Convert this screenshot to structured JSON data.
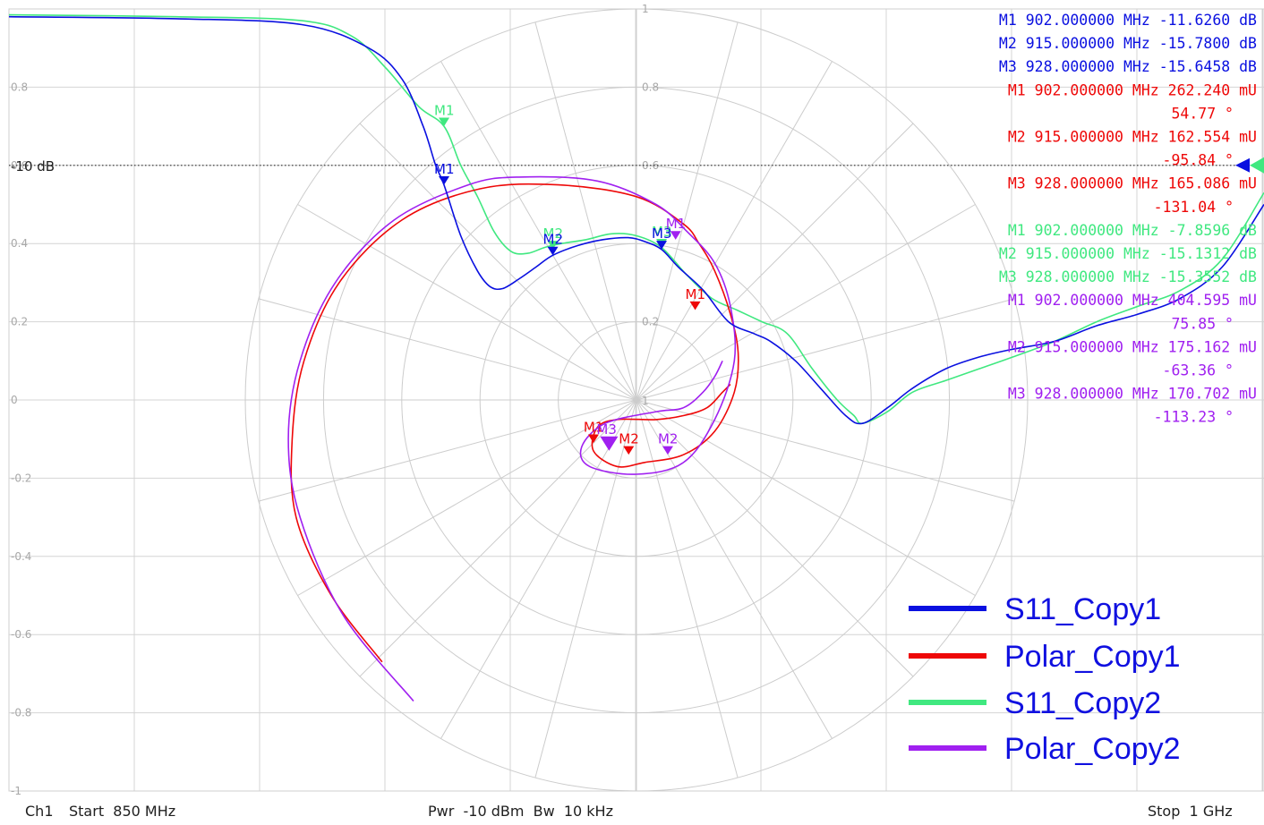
{
  "chart_data": {
    "type": "line",
    "y_axis": {
      "ticks": [
        {
          "value": 0.8,
          "label": "0.8"
        },
        {
          "value": 0.6,
          "label": "0.6"
        },
        {
          "value": 0.4,
          "label": "0.4"
        },
        {
          "value": 0.2,
          "label": "0.2"
        },
        {
          "value": 0,
          "label": "0"
        },
        {
          "value": -0.2,
          "label": "-0.2"
        },
        {
          "value": -0.4,
          "label": "-0.4"
        },
        {
          "value": -0.6,
          "label": "-0.6"
        },
        {
          "value": -0.8,
          "label": "-0.8"
        },
        {
          "value": -1,
          "label": "-1"
        }
      ],
      "range": [
        -1,
        1
      ]
    },
    "x_range_mhz": [
      850,
      1000
    ],
    "grid": true,
    "polar_grid": {
      "radii": [
        0.2,
        0.4,
        0.6,
        0.8,
        1.0
      ],
      "ring_labels": [
        {
          "value": 1,
          "label": "1"
        },
        {
          "value": 0.8,
          "label": "0.8"
        },
        {
          "value": 0.6,
          "label": "0.6"
        },
        {
          "value": 0.2,
          "label": "0.2"
        },
        {
          "value": 0,
          "label": "1"
        }
      ]
    },
    "reference_line": {
      "label": "-10 dB",
      "value": 0.6
    },
    "series": [
      {
        "name": "S11_Copy1",
        "color": "#0a10e0",
        "kind": "cartesian",
        "points": [
          [
            850,
            0.98
          ],
          [
            870,
            0.975
          ],
          [
            885,
            0.96
          ],
          [
            893,
            0.9
          ],
          [
            897,
            0.82
          ],
          [
            899.5,
            0.7
          ],
          [
            901,
            0.6
          ],
          [
            902,
            0.55
          ],
          [
            904,
            0.42
          ],
          [
            906,
            0.33
          ],
          [
            907.5,
            0.29
          ],
          [
            909,
            0.285
          ],
          [
            911,
            0.31
          ],
          [
            913,
            0.34
          ],
          [
            915,
            0.37
          ],
          [
            918,
            0.395
          ],
          [
            921,
            0.41
          ],
          [
            924,
            0.415
          ],
          [
            926,
            0.405
          ],
          [
            928,
            0.385
          ],
          [
            930,
            0.34
          ],
          [
            933,
            0.28
          ],
          [
            936,
            0.2
          ],
          [
            939,
            0.17
          ],
          [
            941,
            0.15
          ],
          [
            944,
            0.1
          ],
          [
            947,
            0.03
          ],
          [
            950,
            -0.04
          ],
          [
            952,
            -0.06
          ],
          [
            955,
            -0.02
          ],
          [
            958,
            0.03
          ],
          [
            962,
            0.08
          ],
          [
            966,
            0.11
          ],
          [
            970,
            0.13
          ],
          [
            975,
            0.15
          ],
          [
            980,
            0.19
          ],
          [
            985,
            0.22
          ],
          [
            990,
            0.26
          ],
          [
            995,
            0.34
          ],
          [
            1000,
            0.5
          ]
        ]
      },
      {
        "name": "S11_Copy2",
        "color": "#40e880",
        "kind": "cartesian",
        "points": [
          [
            850,
            0.985
          ],
          [
            870,
            0.98
          ],
          [
            885,
            0.97
          ],
          [
            891,
            0.93
          ],
          [
            895,
            0.85
          ],
          [
            899,
            0.75
          ],
          [
            902,
            0.7
          ],
          [
            904,
            0.6
          ],
          [
            906,
            0.52
          ],
          [
            908,
            0.43
          ],
          [
            910,
            0.38
          ],
          [
            912,
            0.375
          ],
          [
            914,
            0.39
          ],
          [
            916,
            0.4
          ],
          [
            919,
            0.41
          ],
          [
            922,
            0.425
          ],
          [
            925,
            0.42
          ],
          [
            928,
            0.39
          ],
          [
            931,
            0.32
          ],
          [
            934,
            0.26
          ],
          [
            937,
            0.23
          ],
          [
            940,
            0.2
          ],
          [
            943,
            0.17
          ],
          [
            946,
            0.08
          ],
          [
            949,
            0.0
          ],
          [
            951,
            -0.04
          ],
          [
            952,
            -0.06
          ],
          [
            955,
            -0.03
          ],
          [
            958,
            0.02
          ],
          [
            962,
            0.05
          ],
          [
            966,
            0.08
          ],
          [
            970,
            0.11
          ],
          [
            975,
            0.15
          ],
          [
            980,
            0.2
          ],
          [
            985,
            0.24
          ],
          [
            990,
            0.28
          ],
          [
            995,
            0.36
          ],
          [
            1000,
            0.53
          ]
        ]
      },
      {
        "name": "Polar_Copy1",
        "color": "#ee0808",
        "kind": "polar",
        "points": [
          [
            -0.65,
            -0.67
          ],
          [
            -0.78,
            -0.5
          ],
          [
            -0.87,
            -0.3
          ],
          [
            -0.88,
            -0.1
          ],
          [
            -0.85,
            0.1
          ],
          [
            -0.76,
            0.3
          ],
          [
            -0.6,
            0.46
          ],
          [
            -0.4,
            0.54
          ],
          [
            -0.2,
            0.55
          ],
          [
            0.0,
            0.52
          ],
          [
            0.12,
            0.45
          ],
          [
            0.16,
            0.4
          ],
          [
            0.2,
            0.33
          ],
          [
            0.24,
            0.22
          ],
          [
            0.26,
            0.12
          ],
          [
            0.25,
            0.02
          ],
          [
            0.2,
            -0.08
          ],
          [
            0.12,
            -0.14
          ],
          [
            0.02,
            -0.16
          ],
          [
            -0.05,
            -0.17
          ],
          [
            -0.11,
            -0.13
          ],
          [
            -0.1,
            -0.07
          ],
          [
            -0.05,
            -0.05
          ],
          [
            0.05,
            -0.05
          ],
          [
            0.12,
            -0.04
          ],
          [
            0.18,
            -0.02
          ],
          [
            0.22,
            0.02
          ],
          [
            0.24,
            0.04
          ]
        ]
      },
      {
        "name": "Polar_Copy2",
        "color": "#a020f0",
        "kind": "polar",
        "points": [
          [
            -0.57,
            -0.77
          ],
          [
            -0.75,
            -0.55
          ],
          [
            -0.86,
            -0.3
          ],
          [
            -0.89,
            -0.1
          ],
          [
            -0.86,
            0.1
          ],
          [
            -0.77,
            0.3
          ],
          [
            -0.62,
            0.46
          ],
          [
            -0.43,
            0.55
          ],
          [
            -0.3,
            0.57
          ],
          [
            -0.1,
            0.56
          ],
          [
            0.05,
            0.5
          ],
          [
            0.13,
            0.43
          ],
          [
            0.2,
            0.35
          ],
          [
            0.24,
            0.24
          ],
          [
            0.25,
            0.1
          ],
          [
            0.2,
            -0.05
          ],
          [
            0.12,
            -0.16
          ],
          [
            0.0,
            -0.19
          ],
          [
            -0.12,
            -0.17
          ],
          [
            -0.14,
            -0.12
          ],
          [
            -0.08,
            -0.06
          ],
          [
            0.05,
            -0.03
          ],
          [
            0.12,
            -0.02
          ],
          [
            0.17,
            0.02
          ],
          [
            0.2,
            0.06
          ],
          [
            0.22,
            0.1
          ]
        ]
      }
    ],
    "legend": {
      "placement": "bottom-right",
      "entries": [
        {
          "name": "S11_Copy1",
          "color": "#0a10e0"
        },
        {
          "name": "Polar_Copy1",
          "color": "#ee0808"
        },
        {
          "name": "S11_Copy2",
          "color": "#40e880"
        },
        {
          "name": "Polar_Copy2",
          "color": "#a020f0"
        }
      ]
    },
    "trace_markers": [
      {
        "label": "M1",
        "series": "S11_Copy2",
        "color": "#40e880",
        "kind": "cartesian",
        "x": 902,
        "y": 0.7
      },
      {
        "label": "M1",
        "series": "S11_Copy1",
        "color": "#0a10e0",
        "kind": "cartesian",
        "x": 902,
        "y": 0.55
      },
      {
        "label": "M2",
        "series": "S11_Copy2",
        "color": "#40e880",
        "kind": "cartesian",
        "x": 915,
        "y": 0.385
      },
      {
        "label": "M2",
        "series": "S11_Copy1",
        "color": "#0a10e0",
        "kind": "cartesian",
        "x": 915,
        "y": 0.37
      },
      {
        "label": "M3",
        "series": "S11_Copy2",
        "color": "#40e880",
        "kind": "cartesian",
        "x": 928,
        "y": 0.39
      },
      {
        "label": "M3",
        "series": "S11_Copy1",
        "color": "#0a10e0",
        "kind": "cartesian",
        "x": 928,
        "y": 0.385
      },
      {
        "label": "M1",
        "series": "Polar_Copy2",
        "color": "#a020f0",
        "kind": "polar",
        "re": 0.1,
        "im": 0.41
      },
      {
        "label": "M1",
        "series": "Polar_Copy1",
        "color": "#ee0808",
        "kind": "polar",
        "re": 0.15,
        "im": 0.23
      },
      {
        "label": "M1",
        "series": "Polar_Copy1",
        "color": "#ee0808",
        "kind": "polar",
        "re": -0.11,
        "im": -0.11
      },
      {
        "label": "M2",
        "series": "Polar_Copy1",
        "color": "#ee0808",
        "kind": "polar",
        "re": -0.02,
        "im": -0.14
      },
      {
        "label": "M2",
        "series": "Polar_Copy2",
        "color": "#a020f0",
        "kind": "polar",
        "re": 0.08,
        "im": -0.14
      },
      {
        "label": "M3",
        "series": "Polar_Copy2",
        "color": "#a020f0",
        "kind": "polar",
        "re": -0.07,
        "im": -0.13
      }
    ],
    "marker_readouts": [
      {
        "color": "#0a10e0",
        "line": "M1  902.000000  MHz  -11.6260 dB"
      },
      {
        "color": "#0a10e0",
        "line": "M2  915.000000  MHz  -15.7800 dB"
      },
      {
        "color": "#0a10e0",
        "line": "M3  928.000000  MHz  -15.6458 dB"
      },
      {
        "color": "#ee0808",
        "line": "M1  902.000000  MHz  262.240 mU"
      },
      {
        "color": "#ee0808",
        "line": "54.77 °",
        "indent": true
      },
      {
        "color": "#ee0808",
        "line": "M2  915.000000  MHz  162.554 mU"
      },
      {
        "color": "#ee0808",
        "line": "-95.84 °",
        "indent": true
      },
      {
        "color": "#ee0808",
        "line": "M3  928.000000  MHz  165.086 mU"
      },
      {
        "color": "#ee0808",
        "line": "-131.04 °",
        "indent": true
      },
      {
        "color": "#40e880",
        "line": "M1  902.000000  MHz  -7.8596 dB"
      },
      {
        "color": "#40e880",
        "line": "M2  915.000000  MHz  -15.1312 dB"
      },
      {
        "color": "#40e880",
        "line": "M3  928.000000  MHz  -15.3552 dB"
      },
      {
        "color": "#a020f0",
        "line": "M1  902.000000  MHz  404.595 mU"
      },
      {
        "color": "#a020f0",
        "line": "75.85 °",
        "indent": true
      },
      {
        "color": "#a020f0",
        "line": "M2  915.000000  MHz  175.162 mU"
      },
      {
        "color": "#a020f0",
        "line": "-63.36 °",
        "indent": true
      },
      {
        "color": "#a020f0",
        "line": "M3  928.000000  MHz  170.702 mU"
      },
      {
        "color": "#a020f0",
        "line": "-113.23 °",
        "indent": true
      }
    ]
  },
  "footer": {
    "channel": "Ch1",
    "start": "Start  850 MHz",
    "power": "Pwr  -10 dBm  Bw  10 kHz",
    "stop": "Stop  1 GHz"
  }
}
